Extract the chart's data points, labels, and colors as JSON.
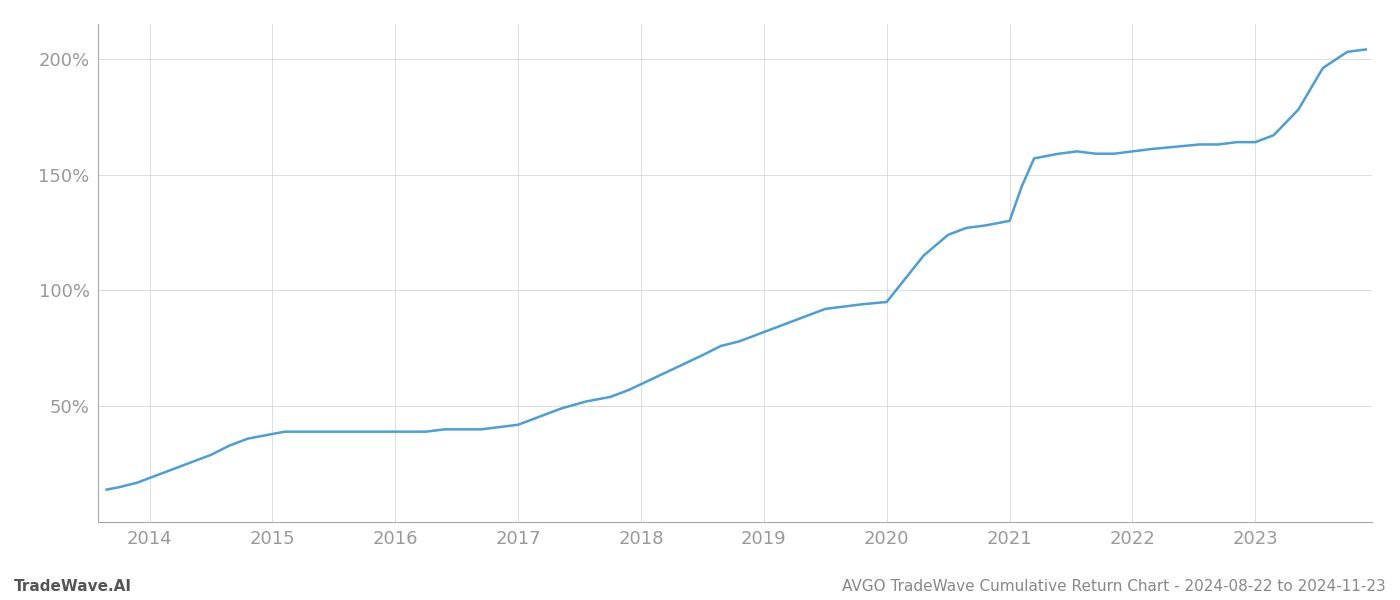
{
  "title": "AVGO TradeWave Cumulative Return Chart - 2024-08-22 to 2024-11-23",
  "watermark": "TradeWave.AI",
  "line_color": "#4a9fd4",
  "line_width": 1.8,
  "background_color": "#ffffff",
  "grid_color": "#d0d0d0",
  "x_years": [
    2014,
    2015,
    2016,
    2017,
    2018,
    2019,
    2020,
    2021,
    2022,
    2023
  ],
  "y_ticks": [
    50,
    100,
    150,
    200
  ],
  "xlim_start": 2013.58,
  "xlim_end": 2023.95,
  "ylim_min": 0,
  "ylim_max": 215,
  "data_x": [
    2013.65,
    2013.75,
    2013.9,
    2014.0,
    2014.15,
    2014.3,
    2014.5,
    2014.65,
    2014.8,
    2015.0,
    2015.1,
    2015.2,
    2015.35,
    2015.5,
    2015.65,
    2015.8,
    2015.95,
    2016.1,
    2016.25,
    2016.4,
    2016.55,
    2016.7,
    2016.85,
    2017.0,
    2017.15,
    2017.35,
    2017.55,
    2017.75,
    2017.9,
    2018.1,
    2018.3,
    2018.5,
    2018.65,
    2018.8,
    2019.0,
    2019.15,
    2019.3,
    2019.5,
    2019.65,
    2019.8,
    2020.0,
    2020.15,
    2020.3,
    2020.5,
    2020.65,
    2020.8,
    2021.0,
    2021.1,
    2021.2,
    2021.4,
    2021.55,
    2021.7,
    2021.85,
    2022.0,
    2022.15,
    2022.35,
    2022.55,
    2022.7,
    2022.85,
    2023.0,
    2023.15,
    2023.35,
    2023.55,
    2023.75,
    2023.9
  ],
  "data_y": [
    14,
    15,
    17,
    19,
    22,
    25,
    29,
    33,
    36,
    38,
    39,
    39,
    39,
    39,
    39,
    39,
    39,
    39,
    39,
    40,
    40,
    40,
    41,
    42,
    45,
    49,
    52,
    54,
    57,
    62,
    67,
    72,
    76,
    78,
    82,
    85,
    88,
    92,
    93,
    94,
    95,
    105,
    115,
    124,
    127,
    128,
    130,
    145,
    157,
    159,
    160,
    159,
    159,
    160,
    161,
    162,
    163,
    163,
    164,
    164,
    167,
    178,
    196,
    203,
    204
  ]
}
